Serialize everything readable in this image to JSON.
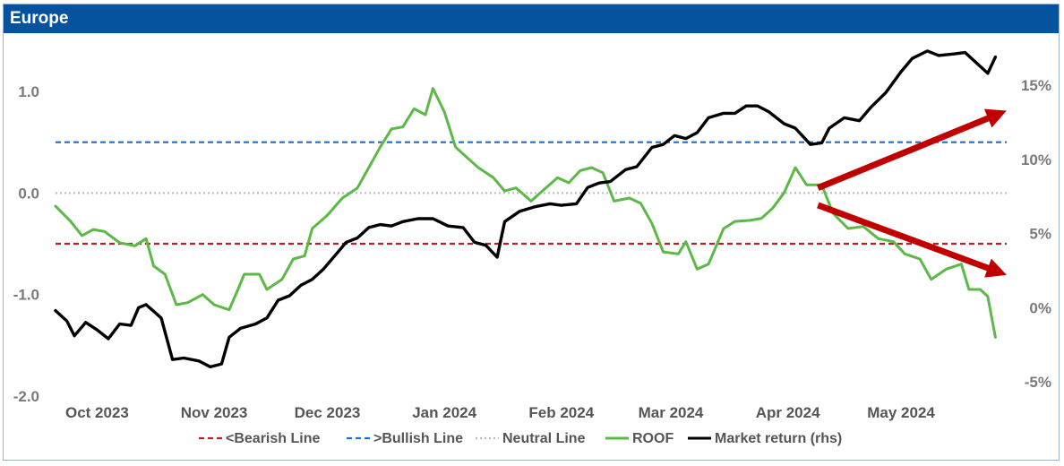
{
  "panel": {
    "title": "Europe"
  },
  "colors": {
    "title_bg": "#05539e",
    "bearish": "#b22222",
    "bullish": "#1f6fc4",
    "neutral": "#bbbbbb",
    "roof": "#5cb847",
    "market": "#000000",
    "arrow": "#c00000"
  },
  "chart_data": {
    "type": "line",
    "x_range": [
      "2023-09-29",
      "2024-06-07"
    ],
    "x_ticks": [
      {
        "label": "Oct 2023",
        "date": "2023-10-01"
      },
      {
        "label": "Nov 2023",
        "date": "2023-11-01"
      },
      {
        "label": "Dec 2023",
        "date": "2023-12-01"
      },
      {
        "label": "Jan 2024",
        "date": "2024-01-01"
      },
      {
        "label": "Feb 2024",
        "date": "2024-02-01"
      },
      {
        "label": "Mar 2024",
        "date": "2024-03-01"
      },
      {
        "label": "Apr 2024",
        "date": "2024-04-01"
      },
      {
        "label": "May 2024",
        "date": "2024-05-01"
      }
    ],
    "y_left": {
      "range": [
        -2.0,
        1.4
      ],
      "ticks": [
        {
          "value": 1.0,
          "label": "1.0"
        },
        {
          "value": 0.0,
          "label": "0.0"
        },
        {
          "value": -1.0,
          "label": "-1.0"
        },
        {
          "value": -2.0,
          "label": "-2.0"
        }
      ]
    },
    "y_right": {
      "range": [
        -5.5,
        17.5
      ],
      "ticks": [
        {
          "value": 15,
          "label": "15%"
        },
        {
          "value": 10,
          "label": "10%"
        },
        {
          "value": 5,
          "label": "5%"
        },
        {
          "value": 0,
          "label": "0%"
        },
        {
          "value": -5,
          "label": "-5%"
        }
      ]
    },
    "reference_lines": [
      {
        "name": "<Bearish Line",
        "value": -0.5,
        "axis": "left",
        "style": "dashed"
      },
      {
        "name": ">Bullish Line",
        "value": 0.5,
        "axis": "left",
        "style": "dashed"
      },
      {
        "name": "Neutral Line",
        "value": 0.0,
        "axis": "left",
        "style": "dotted"
      }
    ],
    "series": [
      {
        "name": "ROOF",
        "axis": "left",
        "points": [
          [
            "2023-09-29",
            -0.13
          ],
          [
            "2023-10-03",
            -0.28
          ],
          [
            "2023-10-06",
            -0.42
          ],
          [
            "2023-10-09",
            -0.36
          ],
          [
            "2023-10-12",
            -0.38
          ],
          [
            "2023-10-16",
            -0.49
          ],
          [
            "2023-10-20",
            -0.52
          ],
          [
            "2023-10-23",
            -0.45
          ],
          [
            "2023-10-25",
            -0.72
          ],
          [
            "2023-10-28",
            -0.8
          ],
          [
            "2023-10-31",
            -1.1
          ],
          [
            "2023-11-03",
            -1.08
          ],
          [
            "2023-11-07",
            -1.0
          ],
          [
            "2023-11-10",
            -1.1
          ],
          [
            "2023-11-14",
            -1.15
          ],
          [
            "2023-11-16",
            -0.98
          ],
          [
            "2023-11-18",
            -0.8
          ],
          [
            "2023-11-22",
            -0.8
          ],
          [
            "2023-11-24",
            -0.95
          ],
          [
            "2023-11-28",
            -0.85
          ],
          [
            "2023-12-01",
            -0.65
          ],
          [
            "2023-12-04",
            -0.62
          ],
          [
            "2023-12-06",
            -0.35
          ],
          [
            "2023-12-10",
            -0.22
          ],
          [
            "2023-12-14",
            -0.05
          ],
          [
            "2023-12-18",
            0.05
          ],
          [
            "2023-12-21",
            0.25
          ],
          [
            "2023-12-24",
            0.45
          ],
          [
            "2023-12-27",
            0.63
          ],
          [
            "2023-12-30",
            0.65
          ],
          [
            "2024-01-02",
            0.83
          ],
          [
            "2024-01-05",
            0.77
          ],
          [
            "2024-01-07",
            1.03
          ],
          [
            "2024-01-10",
            0.8
          ],
          [
            "2024-01-13",
            0.45
          ],
          [
            "2024-01-16",
            0.35
          ],
          [
            "2024-01-19",
            0.25
          ],
          [
            "2024-01-23",
            0.15
          ],
          [
            "2024-01-26",
            0.02
          ],
          [
            "2024-01-29",
            0.05
          ],
          [
            "2024-02-02",
            -0.08
          ],
          [
            "2024-02-05",
            0.02
          ],
          [
            "2024-02-09",
            0.15
          ],
          [
            "2024-02-12",
            0.1
          ],
          [
            "2024-02-15",
            0.22
          ],
          [
            "2024-02-18",
            0.25
          ],
          [
            "2024-02-21",
            0.2
          ],
          [
            "2024-02-24",
            -0.08
          ],
          [
            "2024-02-28",
            -0.05
          ],
          [
            "2024-03-02",
            -0.1
          ],
          [
            "2024-03-05",
            -0.3
          ],
          [
            "2024-03-08",
            -0.58
          ],
          [
            "2024-03-12",
            -0.6
          ],
          [
            "2024-03-14",
            -0.48
          ],
          [
            "2024-03-17",
            -0.75
          ],
          [
            "2024-03-20",
            -0.7
          ],
          [
            "2024-03-24",
            -0.35
          ],
          [
            "2024-03-27",
            -0.28
          ],
          [
            "2024-03-31",
            -0.27
          ],
          [
            "2024-04-03",
            -0.25
          ],
          [
            "2024-04-06",
            -0.15
          ],
          [
            "2024-04-09",
            0.0
          ],
          [
            "2024-04-12",
            0.25
          ],
          [
            "2024-04-15",
            0.08
          ],
          [
            "2024-04-19",
            0.08
          ],
          [
            "2024-04-22",
            -0.2
          ],
          [
            "2024-04-26",
            -0.35
          ],
          [
            "2024-04-30",
            -0.33
          ],
          [
            "2024-05-04",
            -0.45
          ],
          [
            "2024-05-08",
            -0.48
          ],
          [
            "2024-05-11",
            -0.6
          ],
          [
            "2024-05-15",
            -0.65
          ],
          [
            "2024-05-18",
            -0.85
          ],
          [
            "2024-05-22",
            -0.75
          ],
          [
            "2024-05-26",
            -0.7
          ],
          [
            "2024-05-28",
            -0.95
          ],
          [
            "2024-05-31",
            -0.95
          ],
          [
            "2024-06-02",
            -1.02
          ],
          [
            "2024-06-04",
            -1.42
          ]
        ]
      },
      {
        "name": "Market return (rhs)",
        "axis": "right",
        "points": [
          [
            "2023-09-29",
            -0.2
          ],
          [
            "2023-10-02",
            -0.9
          ],
          [
            "2023-10-04",
            -1.9
          ],
          [
            "2023-10-07",
            -1.0
          ],
          [
            "2023-10-10",
            -1.5
          ],
          [
            "2023-10-13",
            -2.1
          ],
          [
            "2023-10-16",
            -1.1
          ],
          [
            "2023-10-19",
            -1.2
          ],
          [
            "2023-10-21",
            0.0
          ],
          [
            "2023-10-23",
            0.2
          ],
          [
            "2023-10-27",
            -0.7
          ],
          [
            "2023-10-30",
            -3.5
          ],
          [
            "2023-11-02",
            -3.4
          ],
          [
            "2023-11-06",
            -3.6
          ],
          [
            "2023-11-09",
            -4.0
          ],
          [
            "2023-11-12",
            -3.8
          ],
          [
            "2023-11-14",
            -2.0
          ],
          [
            "2023-11-17",
            -1.4
          ],
          [
            "2023-11-21",
            -1.1
          ],
          [
            "2023-11-24",
            -0.7
          ],
          [
            "2023-11-27",
            0.5
          ],
          [
            "2023-11-30",
            0.8
          ],
          [
            "2023-12-03",
            1.5
          ],
          [
            "2023-12-06",
            1.9
          ],
          [
            "2023-12-09",
            2.6
          ],
          [
            "2023-12-12",
            3.5
          ],
          [
            "2023-12-15",
            4.4
          ],
          [
            "2023-12-18",
            4.7
          ],
          [
            "2023-12-21",
            5.4
          ],
          [
            "2023-12-24",
            5.6
          ],
          [
            "2023-12-27",
            5.5
          ],
          [
            "2023-12-30",
            5.8
          ],
          [
            "2024-01-03",
            6.0
          ],
          [
            "2024-01-07",
            6.0
          ],
          [
            "2024-01-11",
            5.5
          ],
          [
            "2024-01-15",
            5.4
          ],
          [
            "2024-01-18",
            4.4
          ],
          [
            "2024-01-21",
            4.2
          ],
          [
            "2024-01-24",
            3.4
          ],
          [
            "2024-01-26",
            5.8
          ],
          [
            "2024-01-30",
            6.5
          ],
          [
            "2024-02-03",
            6.8
          ],
          [
            "2024-02-07",
            7.0
          ],
          [
            "2024-02-10",
            6.9
          ],
          [
            "2024-02-14",
            7.0
          ],
          [
            "2024-02-17",
            8.1
          ],
          [
            "2024-02-20",
            8.4
          ],
          [
            "2024-02-23",
            8.5
          ],
          [
            "2024-02-27",
            9.3
          ],
          [
            "2024-03-01",
            9.5
          ],
          [
            "2024-03-05",
            10.8
          ],
          [
            "2024-03-08",
            11.0
          ],
          [
            "2024-03-11",
            11.6
          ],
          [
            "2024-03-14",
            11.4
          ],
          [
            "2024-03-17",
            11.8
          ],
          [
            "2024-03-20",
            12.8
          ],
          [
            "2024-03-24",
            13.1
          ],
          [
            "2024-03-27",
            13.1
          ],
          [
            "2024-03-30",
            13.6
          ],
          [
            "2024-04-02",
            13.6
          ],
          [
            "2024-04-05",
            13.2
          ],
          [
            "2024-04-09",
            12.4
          ],
          [
            "2024-04-12",
            12.1
          ],
          [
            "2024-04-16",
            11.0
          ],
          [
            "2024-04-19",
            11.1
          ],
          [
            "2024-04-21",
            12.1
          ],
          [
            "2024-04-25",
            12.8
          ],
          [
            "2024-04-29",
            12.6
          ],
          [
            "2024-05-02",
            13.5
          ],
          [
            "2024-05-06",
            14.5
          ],
          [
            "2024-05-10",
            15.9
          ],
          [
            "2024-05-13",
            16.8
          ],
          [
            "2024-05-17",
            17.3
          ],
          [
            "2024-05-20",
            17.0
          ],
          [
            "2024-05-24",
            17.1
          ],
          [
            "2024-05-27",
            17.2
          ],
          [
            "2024-05-30",
            16.5
          ],
          [
            "2024-06-02",
            15.8
          ],
          [
            "2024-06-04",
            16.9
          ]
        ]
      }
    ],
    "annotations": [
      {
        "type": "arrow",
        "direction": "up",
        "from": [
          "2024-04-18",
          0.05
        ],
        "to": [
          "2024-06-05",
          0.78
        ],
        "axis": "left"
      },
      {
        "type": "arrow",
        "direction": "down",
        "from": [
          "2024-04-18",
          -0.12
        ],
        "to": [
          "2024-06-05",
          -0.78
        ],
        "axis": "left"
      }
    ],
    "grid": false,
    "legend_position": "bottom-center",
    "legend": [
      "<Bearish Line",
      ">Bullish Line",
      "Neutral Line",
      "ROOF",
      "Market return (rhs)"
    ]
  }
}
